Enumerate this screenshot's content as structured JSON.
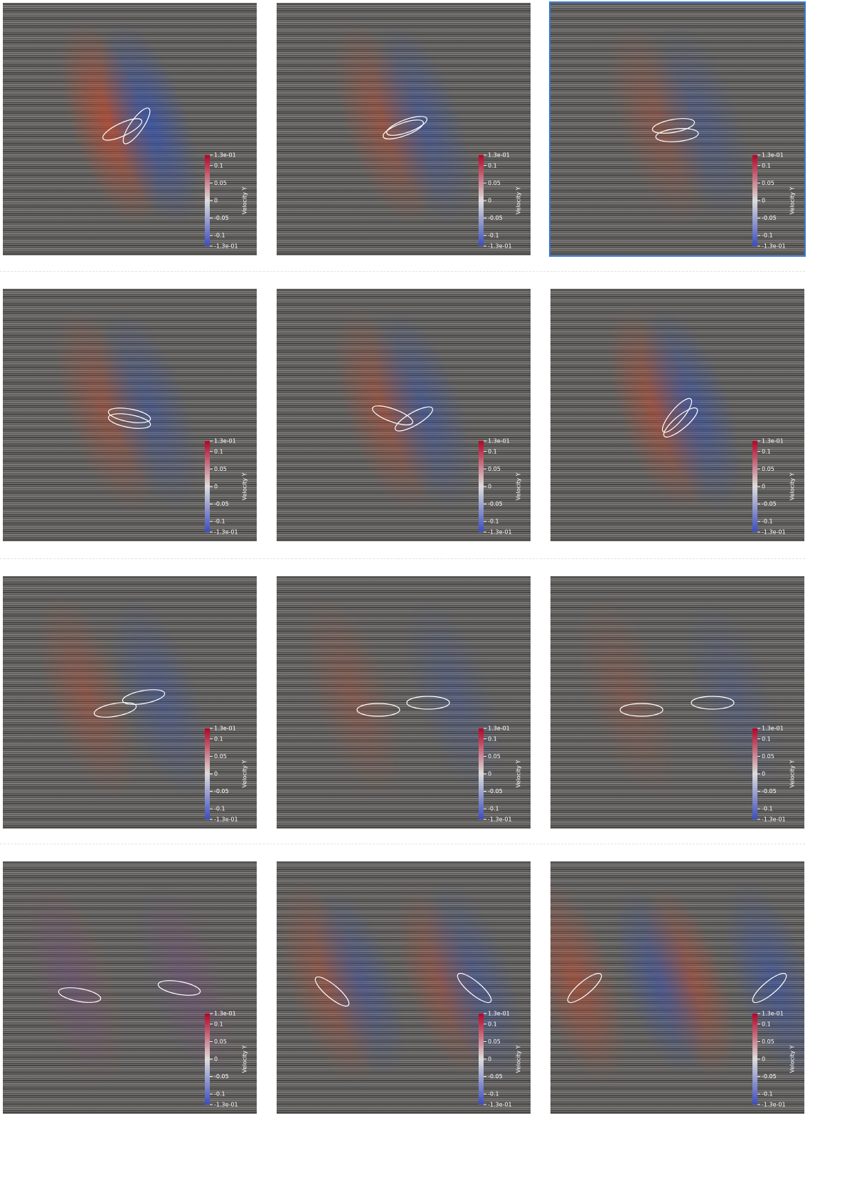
{
  "colorbar": {
    "title": "Velocity Y",
    "range": [
      -0.13,
      0.13
    ],
    "ticks": [
      {
        "value": 0.13,
        "label": "1.3e-01"
      },
      0.1,
      0.05,
      0,
      -0.05,
      -0.1,
      {
        "value": -0.13,
        "label": "-1.3e-01"
      }
    ]
  }
}
